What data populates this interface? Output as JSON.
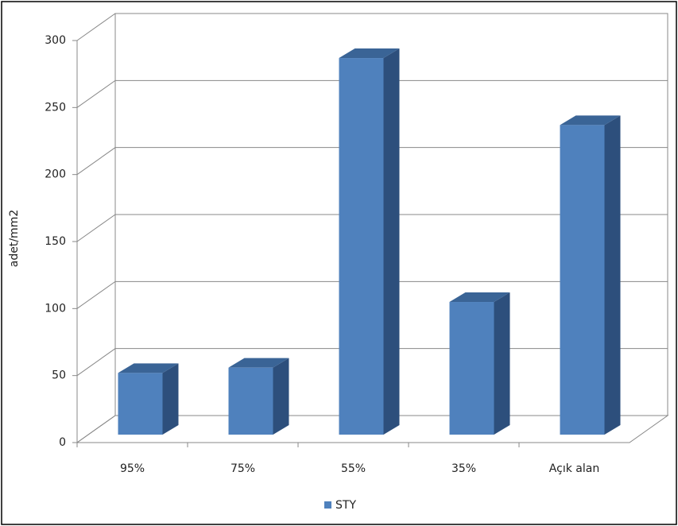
{
  "chart_data": {
    "type": "bar",
    "y_label": "adet/mm2",
    "categories": [
      "95%",
      "75%",
      "55%",
      "35%",
      "Açık alan"
    ],
    "series": [
      {
        "name": "STY",
        "color": "#4f81bd",
        "values": [
          46,
          50,
          281,
          99,
          231
        ]
      }
    ],
    "ylim": [
      0,
      300
    ],
    "yticks": [
      0,
      50,
      100,
      150,
      200,
      250,
      300
    ],
    "grid": true,
    "legend": "bottom"
  }
}
